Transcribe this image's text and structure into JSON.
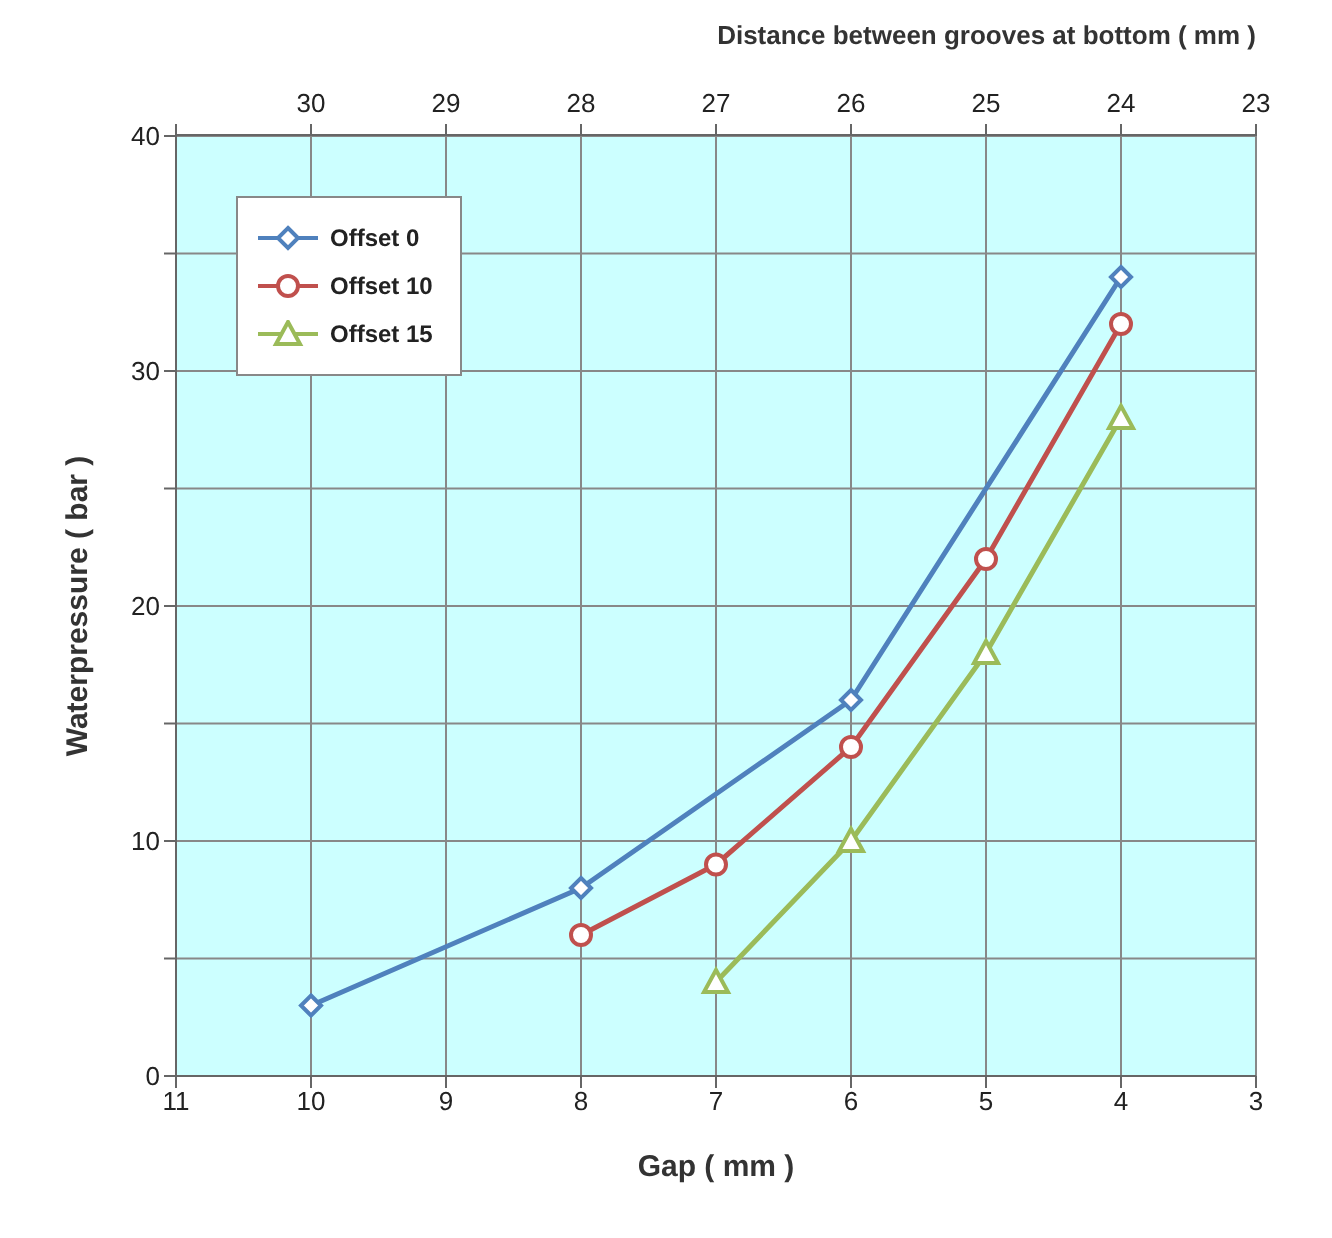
{
  "chart_data": {
    "type": "line",
    "xlabel": "Gap ( mm )",
    "ylabel": "Waterpressure ( bar )",
    "x2label": "Distance between grooves at bottom ( mm )",
    "xlim": [
      11,
      3
    ],
    "xticks": [
      11,
      10,
      9,
      8,
      7,
      6,
      5,
      4,
      3
    ],
    "x2lim": [
      31,
      23
    ],
    "x2ticks": [
      {
        "value": 31,
        "label": null
      },
      30,
      29,
      28,
      27,
      26,
      25,
      24,
      23
    ],
    "ylim": [
      0,
      40
    ],
    "yticks": [
      0,
      {
        "value": 5,
        "label": null
      },
      10,
      {
        "value": 15,
        "label": null
      },
      20,
      {
        "value": 25,
        "label": null
      },
      30,
      {
        "value": 35,
        "label": null
      },
      40
    ],
    "grid": true,
    "legend": "top left",
    "line_style": "solid",
    "series": [
      {
        "name": "Offset 0",
        "color": "#4f81bd",
        "marker": "diamond",
        "x": [
          10,
          8,
          6,
          4
        ],
        "values": [
          3,
          8,
          16,
          34
        ]
      },
      {
        "name": "Offset 10",
        "color": "#c0504d",
        "marker": "circle",
        "x": [
          8,
          7,
          6,
          5,
          4
        ],
        "values": [
          6,
          9,
          14,
          22,
          32
        ]
      },
      {
        "name": "Offset 15",
        "color": "#9bbb59",
        "marker": "triangle",
        "x": [
          7,
          6,
          5,
          4
        ],
        "values": [
          4,
          10,
          18,
          28
        ]
      }
    ]
  }
}
